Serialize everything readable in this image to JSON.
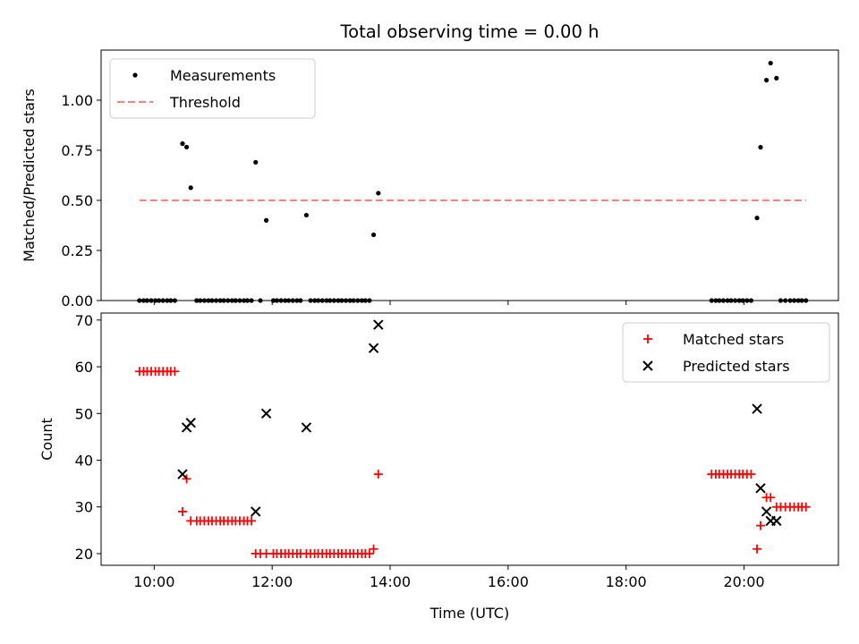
{
  "chart_data": [
    {
      "type": "scatter",
      "title": "Total observing time = 0.00 h",
      "xlabel": "",
      "ylabel": "Matched/Predicted stars",
      "ylim": [
        0,
        1.25
      ],
      "xlim": [
        9.1,
        21.6
      ],
      "yticks": [
        0.0,
        0.25,
        0.5,
        0.75,
        1.0
      ],
      "ytick_labels": [
        "0.00",
        "0.25",
        "0.50",
        "0.75",
        "1.00"
      ],
      "xticks": [
        10,
        12,
        14,
        16,
        18,
        20
      ],
      "xtick_labels": [
        "",
        "",
        "",
        "",
        "",
        ""
      ],
      "grid": false,
      "legend_position": "top-left",
      "series": [
        {
          "name": "Measurements",
          "marker": "dot",
          "color": "#000000",
          "x": [
            9.75,
            9.82,
            9.88,
            9.95,
            10.02,
            10.08,
            10.15,
            10.22,
            10.28,
            10.35,
            10.48,
            10.55,
            10.62,
            10.72,
            10.78,
            10.85,
            10.92,
            10.98,
            11.05,
            11.12,
            11.18,
            11.25,
            11.32,
            11.38,
            11.45,
            11.52,
            11.58,
            11.65,
            11.72,
            11.8,
            11.9,
            12.02,
            12.08,
            12.15,
            12.22,
            12.28,
            12.35,
            12.42,
            12.48,
            12.58,
            12.65,
            12.72,
            12.78,
            12.85,
            12.92,
            12.98,
            13.05,
            13.12,
            13.18,
            13.25,
            13.32,
            13.38,
            13.45,
            13.52,
            13.58,
            13.65,
            13.72,
            13.8,
            19.45,
            19.52,
            19.58,
            19.65,
            19.72,
            19.78,
            19.85,
            19.92,
            19.98,
            20.05,
            20.12,
            20.22,
            20.28,
            20.38,
            20.45,
            20.55,
            20.62,
            20.7,
            20.78,
            20.85,
            20.92,
            20.98,
            21.05
          ],
          "y": [
            0,
            0,
            0,
            0,
            0,
            0,
            0,
            0,
            0,
            0,
            0.783,
            0.766,
            0.563,
            0,
            0,
            0,
            0,
            0,
            0,
            0,
            0,
            0,
            0,
            0,
            0,
            0,
            0,
            0,
            0.69,
            0,
            0.4,
            0,
            0,
            0,
            0,
            0,
            0,
            0,
            0,
            0.426,
            0,
            0,
            0,
            0,
            0,
            0,
            0,
            0,
            0,
            0,
            0,
            0,
            0,
            0,
            0,
            0,
            0.328,
            0.536,
            0,
            0,
            0,
            0,
            0,
            0,
            0,
            0,
            0,
            0,
            0,
            0.412,
            0.765,
            1.1,
            1.185,
            1.11,
            0,
            0,
            0,
            0,
            0,
            0,
            0
          ]
        },
        {
          "name": "Threshold",
          "style": "dashed",
          "color": "#ff8080",
          "x": [
            9.75,
            21.05
          ],
          "y": [
            0.5,
            0.5
          ]
        }
      ]
    },
    {
      "type": "scatter",
      "title": "",
      "xlabel": "Time (UTC)",
      "ylabel": "Count",
      "ylim": [
        17.5,
        71.5
      ],
      "xlim": [
        9.1,
        21.6
      ],
      "yticks": [
        20,
        30,
        40,
        50,
        60,
        70
      ],
      "ytick_labels": [
        "20",
        "30",
        "40",
        "50",
        "60",
        "70"
      ],
      "xticks": [
        10,
        12,
        14,
        16,
        18,
        20
      ],
      "xtick_labels": [
        "10:00",
        "12:00",
        "14:00",
        "16:00",
        "18:00",
        "20:00"
      ],
      "grid": false,
      "legend_position": "top-right",
      "series": [
        {
          "name": "Matched stars",
          "marker": "plus",
          "color": "#ff0000",
          "x": [
            9.75,
            9.82,
            9.88,
            9.95,
            10.02,
            10.08,
            10.15,
            10.22,
            10.28,
            10.35,
            10.48,
            10.55,
            10.62,
            10.72,
            10.78,
            10.85,
            10.92,
            10.98,
            11.05,
            11.12,
            11.18,
            11.25,
            11.32,
            11.38,
            11.45,
            11.52,
            11.58,
            11.65,
            11.72,
            11.8,
            11.9,
            12.02,
            12.08,
            12.15,
            12.22,
            12.28,
            12.35,
            12.42,
            12.48,
            12.58,
            12.65,
            12.72,
            12.78,
            12.85,
            12.92,
            12.98,
            13.05,
            13.12,
            13.18,
            13.25,
            13.32,
            13.38,
            13.45,
            13.52,
            13.58,
            13.65,
            13.72,
            13.8,
            19.45,
            19.52,
            19.58,
            19.65,
            19.72,
            19.78,
            19.85,
            19.92,
            19.98,
            20.05,
            20.12,
            20.22,
            20.28,
            20.38,
            20.45,
            20.55,
            20.62,
            20.7,
            20.78,
            20.85,
            20.92,
            20.98,
            21.05
          ],
          "y": [
            59,
            59,
            59,
            59,
            59,
            59,
            59,
            59,
            59,
            59,
            29,
            36,
            27,
            27,
            27,
            27,
            27,
            27,
            27,
            27,
            27,
            27,
            27,
            27,
            27,
            27,
            27,
            27,
            20,
            20,
            20,
            20,
            20,
            20,
            20,
            20,
            20,
            20,
            20,
            20,
            20,
            20,
            20,
            20,
            20,
            20,
            20,
            20,
            20,
            20,
            20,
            20,
            20,
            20,
            20,
            20,
            21,
            37,
            37,
            37,
            37,
            37,
            37,
            37,
            37,
            37,
            37,
            37,
            37,
            21,
            26,
            32,
            32,
            30,
            30,
            30,
            30,
            30,
            30,
            30,
            30
          ]
        },
        {
          "name": "Predicted stars",
          "marker": "x",
          "color": "#000000",
          "x": [
            10.48,
            10.55,
            10.62,
            11.72,
            11.9,
            12.58,
            13.72,
            13.8,
            20.22,
            20.28,
            20.38,
            20.45,
            20.55
          ],
          "y": [
            37,
            47,
            48,
            29,
            50,
            47,
            64,
            69,
            51,
            34,
            29,
            27,
            27
          ]
        }
      ]
    }
  ]
}
